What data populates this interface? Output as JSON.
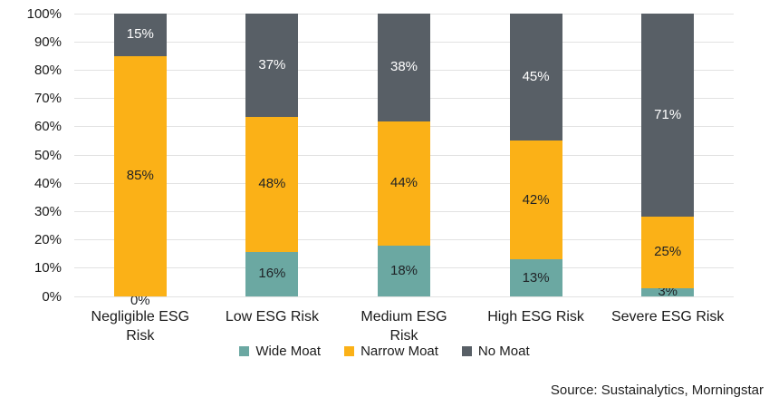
{
  "chart_data": {
    "type": "bar",
    "stacked": true,
    "title": "",
    "categories": [
      "Negligible ESG Risk",
      "Low ESG Risk",
      "Medium ESG Risk",
      "High ESG Risk",
      "Severe ESG Risk"
    ],
    "series": [
      {
        "name": "Wide Moat",
        "color": "#6BA8A2",
        "label_color": "#1F2226",
        "values": [
          0,
          16,
          18,
          13,
          3
        ]
      },
      {
        "name": "Narrow Moat",
        "color": "#FBB117",
        "label_color": "#1F2226",
        "values": [
          85,
          48,
          44,
          42,
          25
        ]
      },
      {
        "name": "No Moat",
        "color": "#585F66",
        "label_color": "#FFFFFF",
        "values": [
          15,
          37,
          38,
          45,
          71
        ]
      }
    ],
    "value_suffix": "%",
    "y_ticks": [
      "100%",
      "90%",
      "80%",
      "70%",
      "60%",
      "50%",
      "40%",
      "30%",
      "20%",
      "10%",
      "0%"
    ],
    "ylim": [
      0,
      100
    ],
    "grid": true,
    "legend_position": "bottom",
    "xlabel": "",
    "ylabel": ""
  },
  "source_caption": "Source: Sustainalytics, Morningstar",
  "colors": {
    "background": "#FFFFFF",
    "gridline": "#E2E2E2",
    "text": "#1A1A1A"
  }
}
